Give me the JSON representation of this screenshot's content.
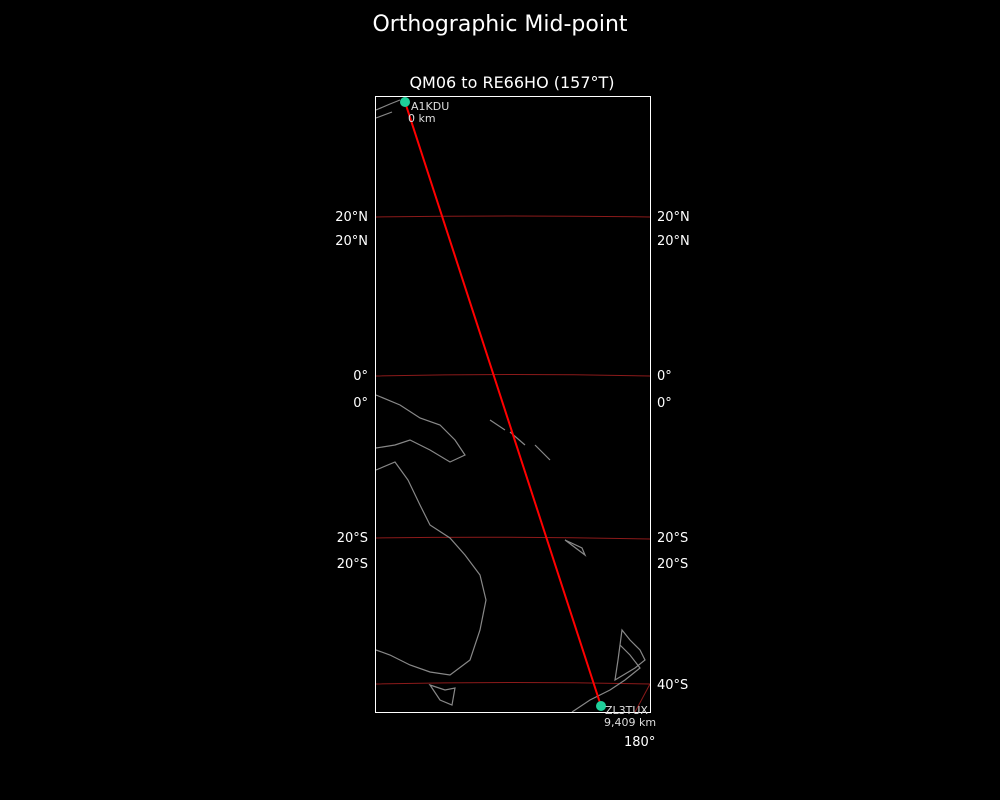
{
  "title": "Orthographic Mid-point",
  "chart_data": {
    "type": "map",
    "title": "QM06 to RE66HO (157°T)",
    "projection": "orthographic",
    "path_color": "#ff0000",
    "marker_color": "#1fcf9a",
    "graticule_color": "#8b1a1a",
    "coast_color": "#888888",
    "start": {
      "label": "A1KDU",
      "distance": "0 km"
    },
    "end": {
      "label": "ZL3TUX",
      "distance": "9,409 km"
    },
    "lat_labels_left": [
      "20°N",
      "20°N",
      "0°",
      "0°",
      "20°S",
      "20°S"
    ],
    "lat_labels_right": [
      "20°N",
      "20°N",
      "0°",
      "0°",
      "20°S",
      "20°S",
      "40°S"
    ],
    "lon_labels": [
      "180°"
    ]
  }
}
